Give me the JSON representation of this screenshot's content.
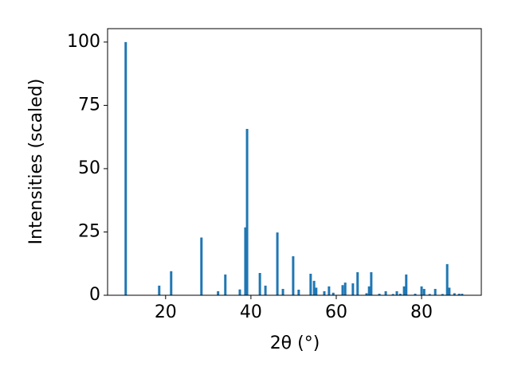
{
  "chart_data": {
    "type": "bar",
    "x_label": "2θ (°)",
    "y_label": "Intensities (scaled)",
    "color": "#1f77b4",
    "x": [
      10.65,
      18.5,
      21.3,
      28.4,
      32.3,
      34.0,
      37.4,
      38.7,
      39.1,
      42.1,
      43.4,
      46.2,
      47.5,
      49.9,
      51.2,
      54.0,
      54.8,
      55.3,
      57.2,
      58.3,
      59.3,
      61.5,
      62.1,
      63.9,
      65.0,
      67.1,
      67.7,
      68.2,
      70.1,
      71.6,
      73.3,
      74.2,
      75.0,
      75.9,
      76.4,
      78.5,
      80.0,
      80.6,
      81.9,
      83.2,
      84.9,
      86.0,
      86.5,
      87.7,
      88.8,
      89.5
    ],
    "values": [
      100,
      3.8,
      9.5,
      22.8,
      1.6,
      8.2,
      2.3,
      26.8,
      65.7,
      8.8,
      3.8,
      24.8,
      2.5,
      15.4,
      2.2,
      8.5,
      5.7,
      3.0,
      1.6,
      3.5,
      1.0,
      4.0,
      5.0,
      4.7,
      9.1,
      0.8,
      3.5,
      9.1,
      0.6,
      1.6,
      0.5,
      1.6,
      0.6,
      3.5,
      8.2,
      0.6,
      3.5,
      2.5,
      0.5,
      2.5,
      0.5,
      12.3,
      3.0,
      0.8,
      0.6,
      0.6
    ],
    "xlim": [
      6.4,
      94.0
    ],
    "ylim": [
      0,
      105.3
    ],
    "xticks": [
      20,
      40,
      60,
      80
    ],
    "yticks": [
      0,
      25,
      50,
      75,
      100
    ]
  }
}
